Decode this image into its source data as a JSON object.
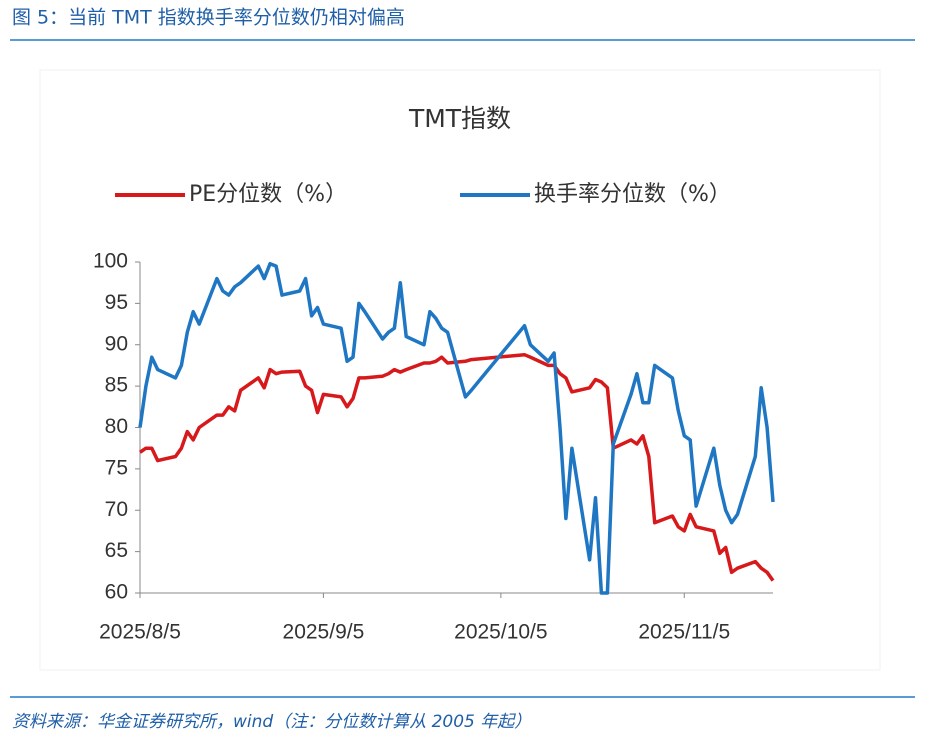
{
  "header": {
    "title": "图 5：当前 TMT 指数换手率分位数仍相对偏高"
  },
  "footer": {
    "source": "资料来源：华金证券研究所，wind（注：分位数计算从 2005 年起）"
  },
  "chart_data": {
    "type": "line",
    "title": "TMT指数",
    "legend": "top",
    "grid": false,
    "x": [
      "2025/8/5",
      "2025/8/6",
      "2025/8/7",
      "2025/8/8",
      "2025/8/11",
      "2025/8/12",
      "2025/8/13",
      "2025/8/14",
      "2025/8/15",
      "2025/8/18",
      "2025/8/19",
      "2025/8/20",
      "2025/8/21",
      "2025/8/22",
      "2025/8/25",
      "2025/8/26",
      "2025/8/27",
      "2025/8/28",
      "2025/8/29",
      "2025/9/1",
      "2025/9/2",
      "2025/9/3",
      "2025/9/4",
      "2025/9/5",
      "2025/9/8",
      "2025/9/9",
      "2025/9/10",
      "2025/9/11",
      "2025/9/12",
      "2025/9/15",
      "2025/9/16",
      "2025/9/17",
      "2025/9/18",
      "2025/9/19",
      "2025/9/22",
      "2025/9/23",
      "2025/9/24",
      "2025/9/25",
      "2025/9/26",
      "2025/9/29",
      "2025/9/30",
      "2025/10/9",
      "2025/10/10",
      "2025/10/13",
      "2025/10/14",
      "2025/10/15",
      "2025/10/16",
      "2025/10/17",
      "2025/10/20",
      "2025/10/21",
      "2025/10/22",
      "2025/10/23",
      "2025/10/24",
      "2025/10/27",
      "2025/10/28",
      "2025/10/29",
      "2025/10/30",
      "2025/10/31",
      "2025/11/3",
      "2025/11/4",
      "2025/11/5",
      "2025/11/6",
      "2025/11/7",
      "2025/11/10",
      "2025/11/11",
      "2025/11/12",
      "2025/11/13",
      "2025/11/14",
      "2025/11/17",
      "2025/11/18",
      "2025/11/19",
      "2025/11/20"
    ],
    "series": [
      {
        "name": "PE分位数（%）",
        "color": "#d7191c",
        "values": [
          77,
          77.5,
          77.5,
          76,
          76.5,
          77.5,
          79.5,
          78.5,
          80,
          81.5,
          81.5,
          82.5,
          82,
          84.5,
          86,
          84.8,
          87,
          86.5,
          86.7,
          86.8,
          85,
          84.5,
          81.8,
          84,
          83.7,
          82.5,
          83.5,
          86,
          86,
          86.2,
          86.5,
          87,
          86.7,
          87,
          87.8,
          87.8,
          88,
          88.5,
          87.8,
          88,
          88.2,
          88.8,
          88.5,
          87.5,
          87.5,
          86.5,
          86,
          84.3,
          84.8,
          85.8,
          85.5,
          84.8,
          77.5,
          78.5,
          78,
          79,
          76.5,
          68.5,
          69.3,
          68,
          67.5,
          69.5,
          68,
          67.5,
          64.8,
          65.5,
          62.5,
          63,
          63.8,
          63,
          62.5,
          61.5
        ]
      },
      {
        "name": "换手率分位数（%）",
        "color": "#1f77c4",
        "values": [
          80,
          85,
          88.5,
          87,
          86,
          87.5,
          91.5,
          94,
          92.5,
          98,
          96.5,
          96,
          97,
          97.5,
          99.5,
          98,
          99.8,
          99.5,
          96,
          96.5,
          98,
          93.5,
          94.5,
          92.5,
          92,
          88,
          88.5,
          95,
          94,
          90.7,
          91.5,
          92,
          97.5,
          91,
          90,
          94,
          93.2,
          92,
          91.5,
          83.7,
          84.5,
          92.3,
          90,
          88,
          89,
          80,
          69,
          77.5,
          64,
          71.5,
          60,
          60,
          78,
          84,
          86.5,
          83,
          83,
          87.5,
          86,
          82,
          79,
          78.5,
          70.5,
          77.5,
          73,
          70,
          68.5,
          69.5,
          76.5,
          84.8,
          80,
          71
        ]
      }
    ],
    "xlim": [
      "2025/8/5",
      "2025/11/20"
    ],
    "xticks": [
      "2025/8/5",
      "2025/9/5",
      "2025/10/5",
      "2025/11/5"
    ],
    "ylim": [
      60,
      100
    ],
    "yticks": [
      60,
      65,
      70,
      75,
      80,
      85,
      90,
      95,
      100
    ]
  }
}
